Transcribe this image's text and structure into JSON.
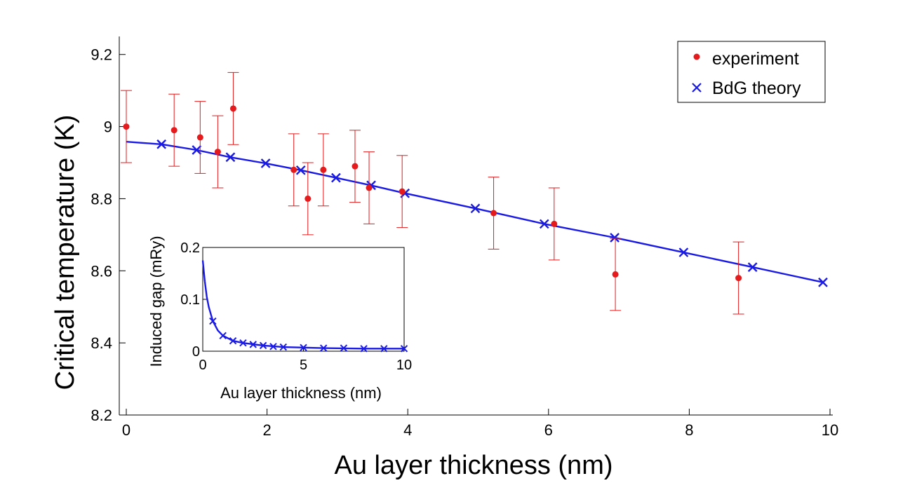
{
  "chart_data": [
    {
      "type": "scatter",
      "title": "",
      "xlabel": "Au layer thickness (nm)",
      "ylabel": "Critical temperature (K)",
      "xlim": [
        0,
        10
      ],
      "ylim": [
        8.2,
        9.25
      ],
      "xticks": [
        0,
        2,
        4,
        6,
        8,
        10
      ],
      "xtick_labels": [
        "0",
        "2",
        "4",
        "6",
        "8",
        "10"
      ],
      "yticks": [
        8.2,
        8.4,
        8.6,
        8.8,
        9.0,
        9.2
      ],
      "ytick_labels": [
        "8.2",
        "8.4",
        "8.6",
        "8.8",
        "9",
        "9.2"
      ],
      "legend_position": "top-right",
      "series": [
        {
          "name": "experiment",
          "color": "#e41a1c",
          "marker": "dot",
          "x": [
            0.0,
            0.68,
            1.05,
            1.3,
            1.52,
            2.38,
            2.58,
            2.8,
            3.25,
            3.45,
            3.92,
            5.22,
            6.08,
            6.95,
            8.7
          ],
          "y": [
            9.0,
            8.99,
            8.97,
            8.93,
            9.05,
            8.88,
            8.8,
            8.88,
            8.89,
            8.83,
            8.82,
            8.76,
            8.73,
            8.59,
            8.58
          ],
          "error": [
            0.1,
            0.1,
            0.1,
            0.1,
            0.1,
            0.1,
            0.1,
            0.1,
            0.1,
            0.1,
            0.1,
            0.1,
            0.1,
            0.1,
            0.1
          ]
        },
        {
          "name": "BdG theory",
          "color": "#1a1ae6",
          "marker": "x",
          "line": true,
          "x": [
            0.0,
            0.5,
            1.0,
            1.48,
            1.98,
            2.48,
            2.98,
            3.48,
            3.96,
            4.96,
            5.94,
            6.94,
            7.92,
            8.9,
            9.9
          ],
          "y": [
            8.958,
            8.951,
            8.935,
            8.915,
            8.898,
            8.879,
            8.858,
            8.837,
            8.815,
            8.773,
            8.73,
            8.692,
            8.651,
            8.61,
            8.568
          ],
          "marker_x": [
            0.5,
            1.0,
            1.48,
            1.98,
            2.48,
            2.98,
            3.48,
            3.96,
            4.96,
            5.94,
            6.94,
            7.92,
            8.9,
            9.9
          ]
        }
      ]
    },
    {
      "type": "line",
      "title": "",
      "xlabel": "Au layer thickness (nm)",
      "ylabel": "Induced gap (mRy)",
      "xlim": [
        0,
        10
      ],
      "ylim": [
        0,
        0.2
      ],
      "xticks": [
        0,
        5,
        10
      ],
      "xtick_labels": [
        "0",
        "5",
        "10"
      ],
      "yticks": [
        0,
        0.1,
        0.2
      ],
      "ytick_labels": [
        "0",
        "0.1",
        "0.2"
      ],
      "series": [
        {
          "name": "BdG theory",
          "color": "#1a1ae6",
          "marker": "x",
          "x": [
            0.5,
            1.0,
            1.5,
            2.0,
            2.5,
            3.0,
            3.5,
            4.0,
            5.0,
            6.0,
            7.0,
            8.0,
            9.0,
            10.0
          ],
          "y": [
            0.058,
            0.03,
            0.02,
            0.016,
            0.013,
            0.011,
            0.009,
            0.008,
            0.007,
            0.006,
            0.006,
            0.005,
            0.005,
            0.005
          ],
          "curve_x": [
            0.0,
            0.1,
            0.2,
            0.3,
            0.5,
            0.75,
            1.0,
            1.5,
            2.0,
            3.0,
            4.0,
            6.0,
            8.0,
            10.0
          ],
          "curve_y": [
            0.175,
            0.135,
            0.105,
            0.085,
            0.058,
            0.04,
            0.03,
            0.02,
            0.016,
            0.011,
            0.008,
            0.006,
            0.005,
            0.005
          ]
        }
      ]
    }
  ]
}
